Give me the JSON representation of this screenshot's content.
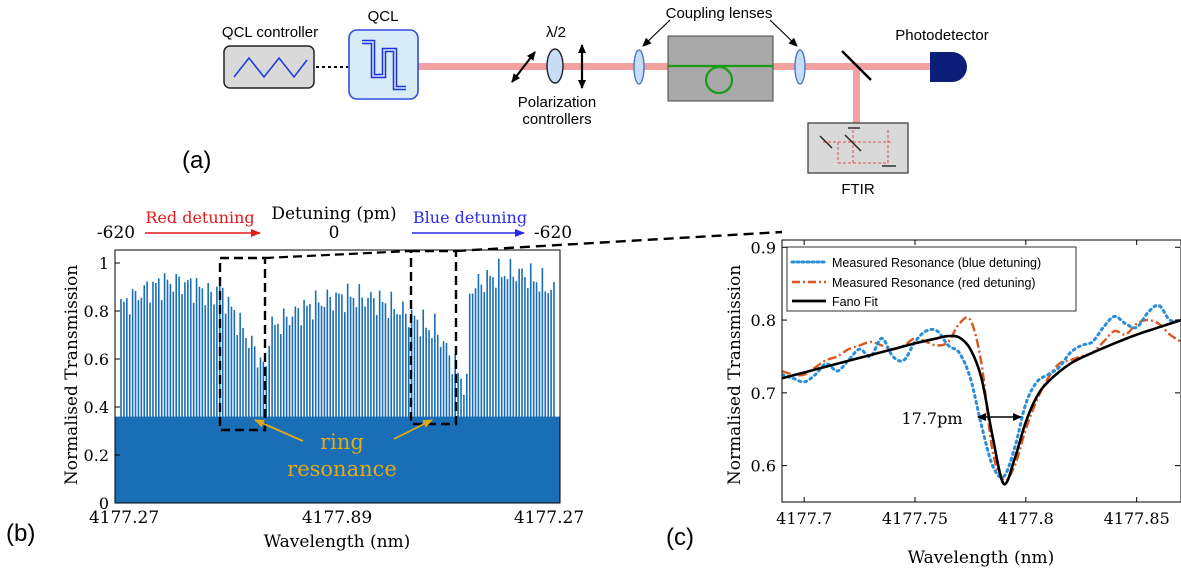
{
  "colors": {
    "beam": "#f2a0a0",
    "lens": "#c9dcf5",
    "lens_edge": "#4a78c8",
    "chip": "#a9a9a9",
    "waveguide": "#1a9a1a",
    "photodetector": "#0b1f7a",
    "qcl_fill": "#d8ecf8",
    "qcl_edge": "#2a4ee0",
    "controller_fill": "#d9d9d9",
    "spectrum": "#1a6eb6",
    "red_arrow": "#e21a1a",
    "blue_arrow": "#2a2ae8",
    "annotation": "#e0aa18",
    "blue_series": "#2a8fd8",
    "red_series": "#d9581e",
    "fit": "#000000"
  },
  "setup": {
    "panel_label": "(a)",
    "qcl_controller_label": "QCL controller",
    "qcl_label": "QCL",
    "half_wave_label": "λ/2",
    "polarization_label_line1": "Polarization",
    "polarization_label_line2": "controllers",
    "coupling_lenses_label": "Coupling lenses",
    "photodetector_label": "Photodetector",
    "ftir_label": "FTIR"
  },
  "panel_b": {
    "panel_label": "(b)",
    "top_axis_title": "Detuning (pm)",
    "top_ticks": [
      "-620",
      "0",
      "-620"
    ],
    "red_detuning_label": "Red detuning",
    "blue_detuning_label": "Blue detuning",
    "ring_label_line1": "ring",
    "ring_label_line2": "resonance",
    "ylabel": "Normalised Transmission",
    "xlabel": "Wavelength (nm)",
    "x_ticks": [
      "4177.27",
      "4177.89",
      "4177.27"
    ],
    "y_ticks": [
      "0",
      "0.2",
      "0.4",
      "0.6",
      "0.8",
      "1"
    ]
  },
  "panel_c": {
    "panel_label": "(c)",
    "fwhm_label": "17.7pm"
  },
  "chart_data": {
    "type": "line",
    "xlabel": "Wavelength (nm)",
    "ylabel": "Normalised Transmission",
    "xlim": [
      4177.69,
      4177.87
    ],
    "ylim": [
      0.55,
      0.91
    ],
    "x_ticks": [
      "4177.7",
      "4177.75",
      "4177.8",
      "4177.85"
    ],
    "y_ticks": [
      "0.6",
      "0.7",
      "0.8",
      "0.9"
    ],
    "legend_position": "top-left",
    "series": [
      {
        "name": "Measured Resonance (blue detuning)",
        "style": "dotted",
        "x": [
          4177.69,
          4177.695,
          4177.7,
          4177.705,
          4177.71,
          4177.715,
          4177.72,
          4177.725,
          4177.73,
          4177.735,
          4177.74,
          4177.745,
          4177.75,
          4177.755,
          4177.76,
          4177.765,
          4177.77,
          4177.775,
          4177.78,
          4177.785,
          4177.79,
          4177.795,
          4177.8,
          4177.805,
          4177.81,
          4177.815,
          4177.82,
          4177.825,
          4177.83,
          4177.835,
          4177.84,
          4177.845,
          4177.85,
          4177.855,
          4177.86,
          4177.865,
          4177.87
        ],
        "y": [
          0.725,
          0.72,
          0.715,
          0.725,
          0.74,
          0.73,
          0.745,
          0.76,
          0.75,
          0.775,
          0.75,
          0.745,
          0.77,
          0.785,
          0.785,
          0.765,
          0.755,
          0.72,
          0.655,
          0.6,
          0.585,
          0.625,
          0.685,
          0.715,
          0.725,
          0.735,
          0.755,
          0.765,
          0.77,
          0.79,
          0.805,
          0.795,
          0.79,
          0.81,
          0.82,
          0.8,
          0.8
        ]
      },
      {
        "name": "Measured Resonance (red detuning)",
        "style": "dashdot",
        "x": [
          4177.69,
          4177.695,
          4177.7,
          4177.705,
          4177.71,
          4177.715,
          4177.72,
          4177.725,
          4177.73,
          4177.735,
          4177.74,
          4177.745,
          4177.75,
          4177.755,
          4177.76,
          4177.765,
          4177.77,
          4177.775,
          4177.78,
          4177.785,
          4177.79,
          4177.795,
          4177.8,
          4177.805,
          4177.81,
          4177.815,
          4177.82,
          4177.825,
          4177.83,
          4177.835,
          4177.84,
          4177.845,
          4177.85,
          4177.855,
          4177.86,
          4177.865,
          4177.87
        ],
        "y": [
          0.73,
          0.725,
          0.725,
          0.735,
          0.745,
          0.75,
          0.76,
          0.765,
          0.77,
          0.765,
          0.76,
          0.765,
          0.775,
          0.77,
          0.765,
          0.77,
          0.795,
          0.8,
          0.74,
          0.62,
          0.58,
          0.6,
          0.65,
          0.69,
          0.72,
          0.74,
          0.745,
          0.75,
          0.755,
          0.77,
          0.785,
          0.78,
          0.795,
          0.8,
          0.795,
          0.78,
          0.77
        ]
      },
      {
        "name": "Fano Fit",
        "style": "solid",
        "x": [
          4177.69,
          4177.7,
          4177.71,
          4177.72,
          4177.73,
          4177.74,
          4177.75,
          4177.76,
          4177.765,
          4177.77,
          4177.775,
          4177.78,
          4177.785,
          4177.79,
          4177.795,
          4177.8,
          4177.805,
          4177.81,
          4177.82,
          4177.83,
          4177.84,
          4177.85,
          4177.86,
          4177.87
        ],
        "y": [
          0.72,
          0.728,
          0.736,
          0.744,
          0.752,
          0.76,
          0.768,
          0.775,
          0.778,
          0.776,
          0.76,
          0.72,
          0.64,
          0.575,
          0.61,
          0.66,
          0.695,
          0.715,
          0.74,
          0.755,
          0.768,
          0.78,
          0.79,
          0.8
        ]
      }
    ]
  }
}
